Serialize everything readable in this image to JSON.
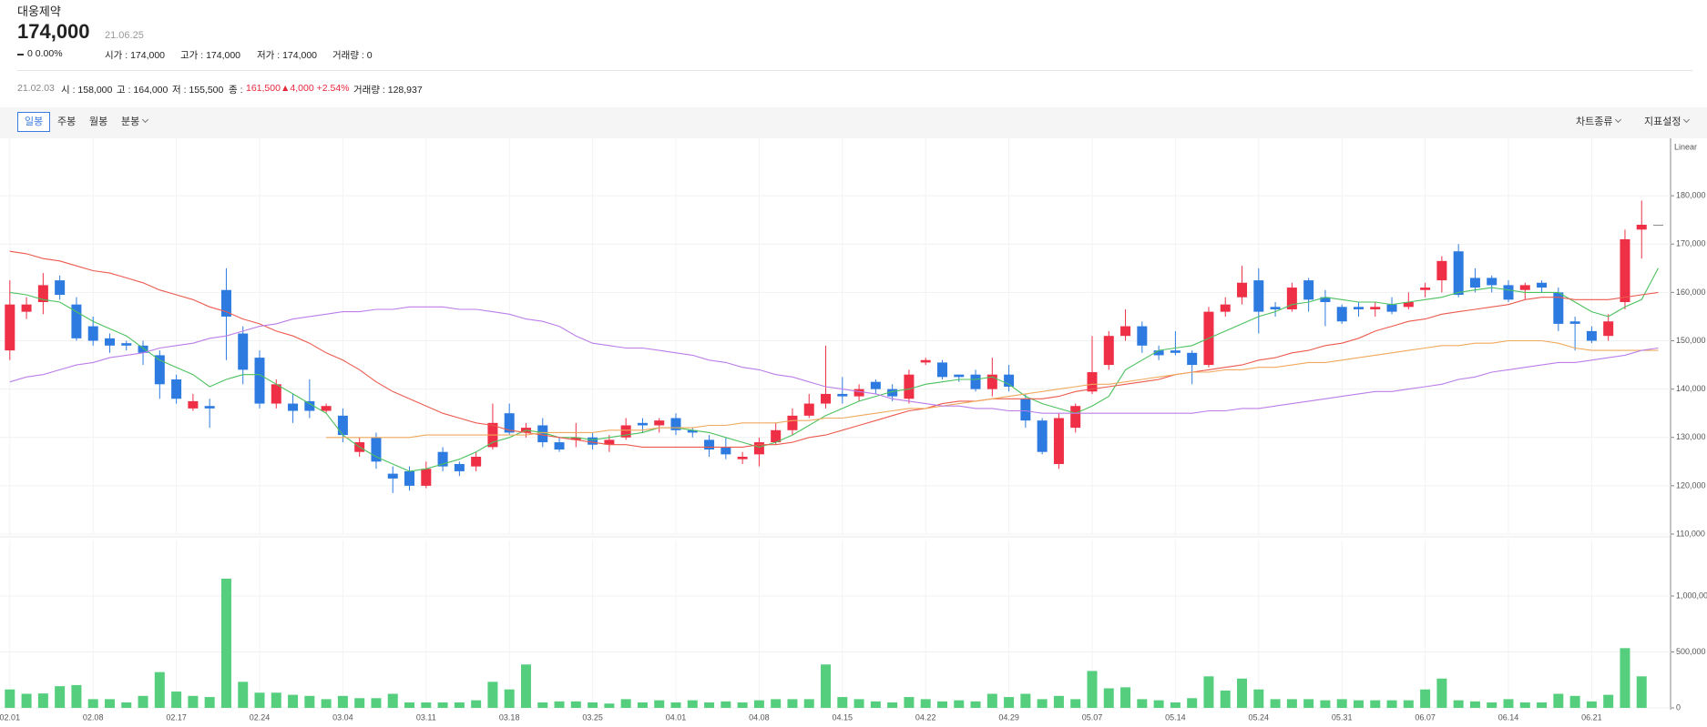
{
  "header": {
    "name": "대웅제약",
    "price": "174,000",
    "date": "21.06.25",
    "change": "0 0.00%",
    "open": "시가 : 174,000",
    "high": "고가 : 174,000",
    "low": "저가 : 174,000",
    "volume": "거래량 : 0"
  },
  "info": {
    "date": "21.02.03",
    "open": "시 : 158,000",
    "high": "고 : 164,000",
    "low": "저 : 155,500",
    "close_label": "종 :",
    "close": "161,500",
    "change": "▲4,000 +2.54%",
    "volume": "거래량 : 128,937"
  },
  "toolbar": {
    "periods": [
      "일봉",
      "주봉",
      "월봉",
      "분봉"
    ],
    "chart_type": "차트종류",
    "indicators": "지표설정"
  },
  "chart_data": {
    "type": "candlestick",
    "scale_label": "Linear",
    "categories": [
      "02.01",
      null,
      null,
      null,
      null,
      "02.08",
      null,
      null,
      null,
      null,
      "02.17",
      null,
      null,
      null,
      null,
      "02.24",
      null,
      null,
      null,
      null,
      "03.04",
      null,
      null,
      null,
      null,
      "03.11",
      null,
      null,
      null,
      null,
      "03.18",
      null,
      null,
      null,
      null,
      "03.25",
      null,
      null,
      null,
      null,
      "04.01",
      null,
      null,
      null,
      null,
      "04.08",
      null,
      null,
      null,
      null,
      "04.15",
      null,
      null,
      null,
      null,
      "04.22",
      null,
      null,
      null,
      null,
      "04.29",
      null,
      null,
      null,
      null,
      "05.07",
      null,
      null,
      null,
      null,
      "05.14",
      null,
      null,
      null,
      null,
      "05.24",
      null,
      null,
      null,
      null,
      "05.31",
      null,
      null,
      null,
      null,
      "06.07",
      null,
      null,
      null,
      null,
      "06.14",
      null,
      null,
      null,
      null,
      "06.21",
      null,
      null,
      null,
      null
    ],
    "open": [
      148000,
      156000,
      158000,
      162500,
      157500,
      153000,
      150500,
      149500,
      149000,
      147000,
      142000,
      136000,
      136500,
      160500,
      151500,
      146500,
      137000,
      137000,
      137500,
      135500,
      134500,
      127000,
      130000,
      122500,
      123000,
      120000,
      127000,
      124500,
      124000,
      128000,
      135000,
      131000,
      132500,
      129000,
      129500,
      130000,
      128500,
      130000,
      133000,
      132500,
      134000,
      131500,
      129500,
      128000,
      125500,
      126500,
      129000,
      131500,
      134500,
      137000,
      139000,
      138500,
      141500,
      140000,
      138000,
      145500,
      145500,
      143000,
      143000,
      140000,
      143000,
      138000,
      133500,
      124500,
      132000,
      139500,
      145000,
      151000,
      153000,
      148000,
      148000,
      147500,
      145000,
      156000,
      159000,
      162500,
      157000,
      156500,
      162500,
      159000,
      157000,
      157000,
      156500,
      157500,
      157000,
      160500,
      162500,
      168500,
      163000,
      163000,
      161500,
      160500,
      162000,
      160000,
      154000,
      152000,
      151000,
      158000,
      173000,
      174000
    ],
    "high": [
      162500,
      159000,
      164000,
      163500,
      159000,
      155000,
      151500,
      150000,
      150000,
      148000,
      143000,
      139000,
      138000,
      165000,
      153000,
      148000,
      142000,
      139000,
      142000,
      137000,
      136000,
      130000,
      131000,
      124000,
      124000,
      125000,
      128000,
      125000,
      127000,
      137000,
      137000,
      133000,
      134000,
      130000,
      133000,
      131000,
      130500,
      134000,
      134000,
      134000,
      135000,
      132000,
      130500,
      130000,
      127000,
      130000,
      133000,
      136000,
      139000,
      149000,
      142500,
      141000,
      142000,
      141000,
      144000,
      146500,
      146000,
      143000,
      144000,
      146500,
      145000,
      139000,
      134000,
      135000,
      137000,
      151000,
      152000,
      156500,
      154000,
      149000,
      152000,
      148000,
      157000,
      159000,
      165500,
      165000,
      158000,
      162000,
      163000,
      160500,
      157500,
      158000,
      158000,
      159000,
      160000,
      162000,
      167500,
      170000,
      165000,
      163500,
      162500,
      162000,
      162500,
      161000,
      155000,
      153000,
      155500,
      173000,
      179000,
      174000
    ],
    "low": [
      146000,
      154500,
      155500,
      158500,
      150000,
      149000,
      147500,
      148000,
      145000,
      138000,
      137000,
      135500,
      132000,
      146000,
      141000,
      136000,
      136000,
      133000,
      134000,
      135000,
      129000,
      126000,
      123500,
      118500,
      119000,
      119500,
      123000,
      122000,
      123000,
      127500,
      130500,
      130000,
      128000,
      127000,
      128000,
      127500,
      127000,
      129500,
      131000,
      131000,
      130500,
      130000,
      126000,
      125500,
      124500,
      124000,
      128500,
      130500,
      134000,
      136000,
      137000,
      137500,
      139000,
      137500,
      137000,
      145000,
      142000,
      141500,
      139500,
      138500,
      139500,
      132000,
      126500,
      123500,
      131000,
      139000,
      144000,
      150000,
      147500,
      146000,
      147000,
      141000,
      144500,
      155000,
      157500,
      151500,
      155000,
      156000,
      156000,
      153000,
      153500,
      155000,
      155000,
      155500,
      156500,
      159000,
      160000,
      159000,
      160000,
      160000,
      158000,
      158500,
      160000,
      152000,
      148000,
      149500,
      150000,
      156500,
      167000,
      174000
    ],
    "close": [
      157500,
      157500,
      161500,
      159500,
      150500,
      150000,
      149000,
      149000,
      147500,
      141000,
      138000,
      137500,
      136000,
      155000,
      144000,
      137000,
      141000,
      135500,
      135500,
      136500,
      130500,
      129000,
      125000,
      121500,
      120000,
      123500,
      124000,
      123000,
      126000,
      133000,
      131000,
      132000,
      129000,
      127500,
      130000,
      128500,
      129500,
      132500,
      132500,
      133500,
      131500,
      131000,
      127500,
      126500,
      126000,
      129000,
      131500,
      134500,
      137000,
      139000,
      138500,
      140000,
      140000,
      138500,
      143000,
      146000,
      142500,
      142500,
      140000,
      143000,
      140500,
      133500,
      127000,
      134000,
      136500,
      143500,
      151000,
      153000,
      149000,
      147000,
      147500,
      145000,
      156000,
      157500,
      162000,
      156000,
      156500,
      161000,
      158500,
      158000,
      154000,
      156500,
      157000,
      156000,
      158000,
      161000,
      166500,
      159500,
      161000,
      161500,
      158500,
      161500,
      161000,
      153500,
      153500,
      150000,
      154000,
      171000,
      174000,
      174000
    ],
    "volume": [
      165000,
      126000,
      128937,
      194000,
      204000,
      78000,
      78000,
      49000,
      107000,
      320000,
      146000,
      107000,
      97000,
      1155000,
      233000,
      136000,
      136000,
      117000,
      107000,
      78000,
      107000,
      87000,
      87000,
      126000,
      49000,
      49000,
      49000,
      49000,
      68000,
      233000,
      165000,
      388000,
      49000,
      58000,
      58000,
      49000,
      39000,
      78000,
      49000,
      68000,
      49000,
      68000,
      49000,
      58000,
      49000,
      68000,
      78000,
      78000,
      78000,
      388000,
      97000,
      78000,
      58000,
      49000,
      97000,
      78000,
      58000,
      68000,
      58000,
      126000,
      97000,
      126000,
      78000,
      107000,
      78000,
      330000,
      175000,
      184000,
      78000,
      68000,
      49000,
      87000,
      282000,
      155000,
      262000,
      165000,
      78000,
      78000,
      78000,
      68000,
      78000,
      68000,
      68000,
      68000,
      68000,
      165000,
      262000,
      68000,
      58000,
      49000,
      78000,
      49000,
      49000,
      126000,
      107000,
      58000,
      117000,
      534000,
      282000,
      0
    ],
    "up_color": "#ee2f45",
    "down_color": "#2d7be0",
    "flat_color": "#8a8a8a",
    "volume_color": "#55cf7e",
    "series": [
      {
        "color": "#4cc15e",
        "values": [
          160000,
          159500,
          158500,
          158000,
          156000,
          154000,
          152500,
          151000,
          148500,
          146000,
          144500,
          143000,
          140500,
          142000,
          143000,
          143000,
          141000,
          139000,
          137000,
          135000,
          130500,
          128000,
          126000,
          124500,
          123000,
          123500,
          124500,
          125500,
          127000,
          129000,
          130000,
          131500,
          131000,
          130000,
          130000,
          129500,
          130000,
          130500,
          131000,
          132000,
          132000,
          131500,
          131000,
          130000,
          129000,
          128000,
          129000,
          130500,
          132500,
          134500,
          136000,
          137500,
          138500,
          139500,
          140000,
          141000,
          141500,
          142000,
          142000,
          142500,
          141000,
          138500,
          137000,
          136000,
          135000,
          136500,
          138500,
          144000,
          146000,
          148000,
          148500,
          149000,
          150500,
          152000,
          153500,
          155000,
          156000,
          157500,
          158000,
          159000,
          158500,
          158000,
          158000,
          157500,
          158000,
          158500,
          159000,
          160000,
          160500,
          161000,
          160500,
          160000,
          160000,
          160000,
          158000,
          156000,
          155000,
          157000,
          158500,
          165000
        ]
      },
      {
        "color": "#ec5a4e",
        "values": [
          168500,
          168000,
          167000,
          166500,
          165500,
          164500,
          164000,
          163000,
          162000,
          160500,
          159500,
          158500,
          157000,
          156000,
          154500,
          153500,
          152000,
          151000,
          149500,
          147500,
          146000,
          144000,
          141500,
          139500,
          138000,
          136500,
          135000,
          134000,
          133000,
          132500,
          131500,
          131000,
          130500,
          130000,
          129500,
          129000,
          128500,
          128500,
          128000,
          128000,
          128000,
          128000,
          128000,
          128000,
          128000,
          128500,
          128500,
          129000,
          130000,
          130500,
          131500,
          132500,
          133500,
          134500,
          135500,
          136000,
          137000,
          137500,
          137500,
          138000,
          138000,
          138000,
          138000,
          138500,
          139500,
          140000,
          140500,
          141000,
          141500,
          142000,
          143000,
          143500,
          144000,
          144500,
          145000,
          146000,
          146500,
          147500,
          148000,
          149000,
          149500,
          150500,
          152000,
          153000,
          154000,
          154500,
          155500,
          156000,
          156500,
          157000,
          157500,
          158500,
          159000,
          159000,
          158500,
          158500,
          158500,
          159000,
          159500,
          160000
        ]
      },
      {
        "color": "#f0a95c",
        "values": [
          null,
          null,
          null,
          null,
          null,
          null,
          null,
          null,
          null,
          null,
          null,
          null,
          null,
          null,
          null,
          null,
          null,
          null,
          null,
          130000,
          130000,
          130000,
          130000,
          130000,
          130000,
          130500,
          130500,
          130500,
          130500,
          130500,
          130500,
          130500,
          131000,
          131000,
          131000,
          131000,
          131500,
          131500,
          131500,
          132000,
          132000,
          132000,
          132500,
          132500,
          133000,
          133000,
          133000,
          133500,
          133500,
          134000,
          134000,
          134500,
          135000,
          135500,
          136000,
          136000,
          136500,
          137000,
          137500,
          138000,
          138500,
          139000,
          139500,
          140000,
          140500,
          141000,
          141000,
          141500,
          142000,
          142500,
          143000,
          143500,
          143500,
          144000,
          144000,
          144500,
          144500,
          145000,
          145500,
          145500,
          146000,
          146500,
          147000,
          147500,
          148000,
          148500,
          149000,
          149000,
          149500,
          149500,
          150000,
          150000,
          150000,
          149500,
          148500,
          148000,
          148000,
          148000,
          148000,
          148000
        ]
      },
      {
        "color": "#bb7ee8",
        "values": [
          141500,
          142500,
          143000,
          144000,
          145000,
          145500,
          146500,
          147000,
          147500,
          148500,
          149000,
          149500,
          150500,
          151000,
          152000,
          153000,
          153500,
          154500,
          155000,
          155500,
          156000,
          156000,
          156500,
          156500,
          157000,
          157000,
          157000,
          156500,
          156500,
          156000,
          155500,
          154500,
          154000,
          153000,
          151000,
          149500,
          149000,
          148500,
          148500,
          148000,
          147500,
          147000,
          146000,
          145500,
          144500,
          144000,
          143000,
          142500,
          141500,
          140500,
          140000,
          139500,
          139000,
          138000,
          137500,
          137000,
          136500,
          136500,
          136000,
          136000,
          135500,
          135500,
          135000,
          135000,
          135000,
          135000,
          135000,
          135000,
          135000,
          135000,
          135000,
          135000,
          135500,
          135500,
          136000,
          136000,
          136500,
          137000,
          137500,
          138000,
          138500,
          139000,
          139500,
          139500,
          140000,
          140500,
          141000,
          142000,
          142500,
          143500,
          144000,
          144500,
          145000,
          145500,
          145500,
          146000,
          146500,
          147000,
          148000,
          148500
        ]
      }
    ],
    "ylim": [
      110000,
      190000
    ],
    "yticks": [
      {
        "value": 110000,
        "label": "110,000"
      },
      {
        "value": 120000,
        "label": "120,000"
      },
      {
        "value": 130000,
        "label": "130,000"
      },
      {
        "value": 140000,
        "label": "140,000"
      },
      {
        "value": 150000,
        "label": "150,000"
      },
      {
        "value": 160000,
        "label": "160,000"
      },
      {
        "value": 170000,
        "label": "170,000"
      },
      {
        "value": 180000,
        "label": "180,000"
      }
    ],
    "volume_ylim": [
      0,
      1500000
    ],
    "volume_yticks": [
      0,
      {
        "value": 500000,
        "label": "500,000"
      },
      {
        "value": 1000000,
        "label": "1,000,000"
      }
    ],
    "grid": true
  }
}
